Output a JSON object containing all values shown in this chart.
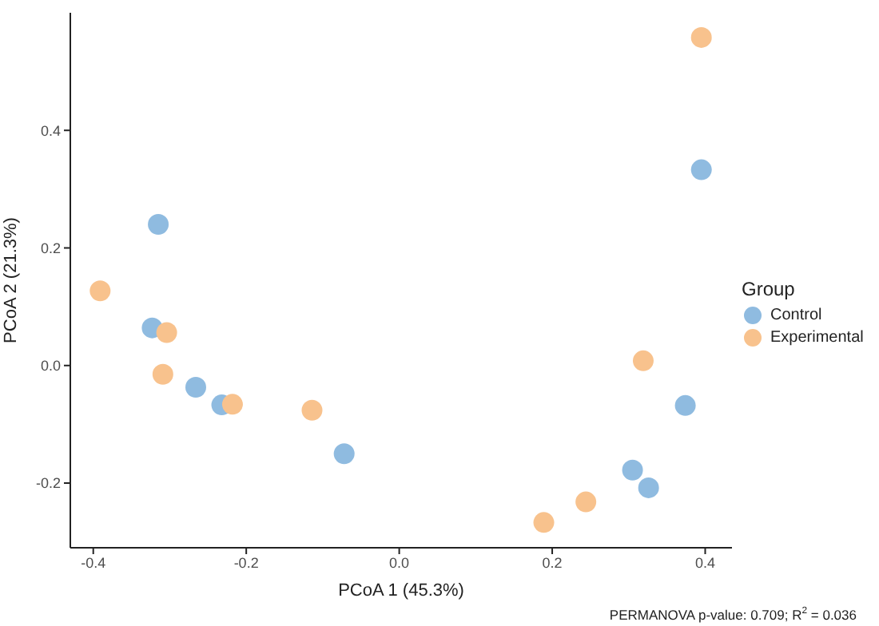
{
  "chart_data": {
    "type": "scatter",
    "xlabel": "PCoA 1 (45.3%)",
    "ylabel": "PCoA 2 (21.3%)",
    "legend_title": "Group",
    "legend": "right",
    "grid": false,
    "marker": "circle",
    "xlim": [
      -0.43,
      0.435
    ],
    "xticks": [
      -0.4,
      -0.2,
      {
        "value": 0,
        "label": "0.0"
      },
      0.2,
      0.4
    ],
    "ylim": [
      -0.31,
      0.6
    ],
    "yticks": [
      -0.2,
      {
        "value": 0,
        "label": "0.0"
      },
      0.2,
      0.4
    ],
    "annotations": [
      "PERMANOVA p-value: 0.709; R$^{2}$ = 0.036"
    ],
    "series": [
      {
        "name": "Control",
        "color": "#8fbbe0",
        "x": [
          -0.315,
          -0.323,
          -0.266,
          -0.232,
          -0.072,
          0.395,
          0.374,
          0.305,
          0.326
        ],
        "values": [
          0.24,
          0.064,
          -0.037,
          -0.067,
          -0.15,
          0.333,
          -0.068,
          -0.178,
          -0.208
        ]
      },
      {
        "name": "Experimental",
        "color": "#f8c28d",
        "x": [
          -0.391,
          -0.304,
          -0.309,
          -0.218,
          -0.114,
          0.395,
          0.319,
          0.244,
          0.189
        ],
        "values": [
          0.127,
          0.056,
          -0.015,
          -0.066,
          -0.076,
          0.558,
          0.008,
          -0.232,
          -0.267
        ]
      }
    ]
  }
}
